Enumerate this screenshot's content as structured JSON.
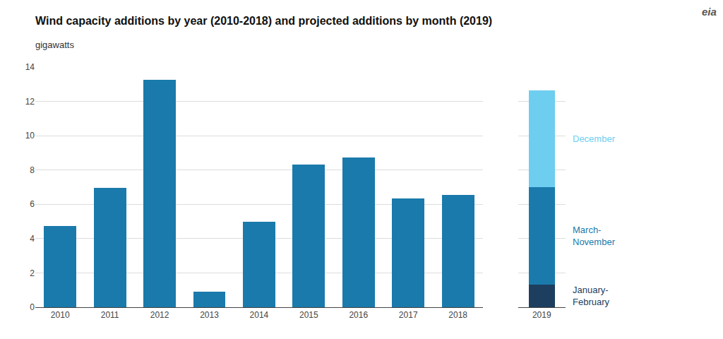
{
  "chart_data": [
    {
      "type": "bar",
      "title": "Wind capacity additions by year (2010-2018) and projected additions by month (2019)",
      "subtitle": "gigawatts",
      "annotations": [
        "eia"
      ],
      "categories": [
        "2010",
        "2011",
        "2012",
        "2013",
        "2014",
        "2015",
        "2016",
        "2017",
        "2018"
      ],
      "values": [
        4.75,
        6.95,
        13.25,
        0.9,
        5.0,
        8.3,
        8.75,
        6.35,
        6.55
      ],
      "color": "#1a7aab",
      "ylim": [
        0,
        14
      ],
      "yticks": [
        0,
        2,
        4,
        6,
        8,
        10,
        12,
        14
      ],
      "grid": true
    },
    {
      "type": "bar",
      "stacked": true,
      "categories": [
        "2019"
      ],
      "series": [
        {
          "name": "January-\nFebruary",
          "color": "#1d3e5e",
          "values": [
            1.3
          ]
        },
        {
          "name": "March-\nNovember",
          "color": "#1a7aab",
          "values": [
            5.7
          ]
        },
        {
          "name": "December",
          "color": "#6ecef0",
          "values": [
            5.65
          ]
        }
      ],
      "ylim": [
        0,
        14
      ],
      "yticks": [
        0,
        2,
        4,
        6,
        8,
        10,
        12,
        14
      ],
      "grid": true,
      "tick_labels": "x"
    }
  ]
}
